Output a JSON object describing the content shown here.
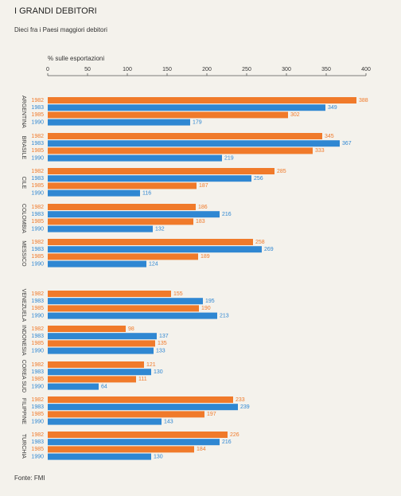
{
  "chart_data": {
    "type": "bar",
    "orientation": "horizontal",
    "title": "I GRANDI DEBITORI",
    "subtitle": "Dieci fra i Paesi maggiori debitori",
    "x_label": "% sulle esportazioni",
    "source": "Fonte: FMI",
    "categories": [
      "ARGENTINA",
      "BRASILE",
      "CILE",
      "COLOMBIA",
      "MESSICO",
      "VENEZUELA",
      "INDONESIA",
      "COREA SUD",
      "FILIPPINE",
      "TURCHIA"
    ],
    "series": [
      {
        "name": "1982",
        "color": "#f07a2a",
        "values": [
          388,
          345,
          285,
          186,
          258,
          155,
          98,
          121,
          233,
          226
        ]
      },
      {
        "name": "1983",
        "color": "#2f87d2",
        "values": [
          349,
          367,
          256,
          216,
          269,
          195,
          137,
          130,
          239,
          216
        ]
      },
      {
        "name": "1985",
        "color": "#f07a2a",
        "values": [
          302,
          333,
          187,
          183,
          189,
          190,
          135,
          111,
          197,
          184
        ]
      },
      {
        "name": "1990",
        "color": "#2f87d2",
        "values": [
          179,
          219,
          116,
          132,
          124,
          213,
          133,
          64,
          143,
          130
        ]
      }
    ],
    "xlim": [
      0,
      400
    ],
    "xticks": [
      0,
      50,
      100,
      150,
      200,
      250,
      300,
      350,
      400
    ]
  }
}
